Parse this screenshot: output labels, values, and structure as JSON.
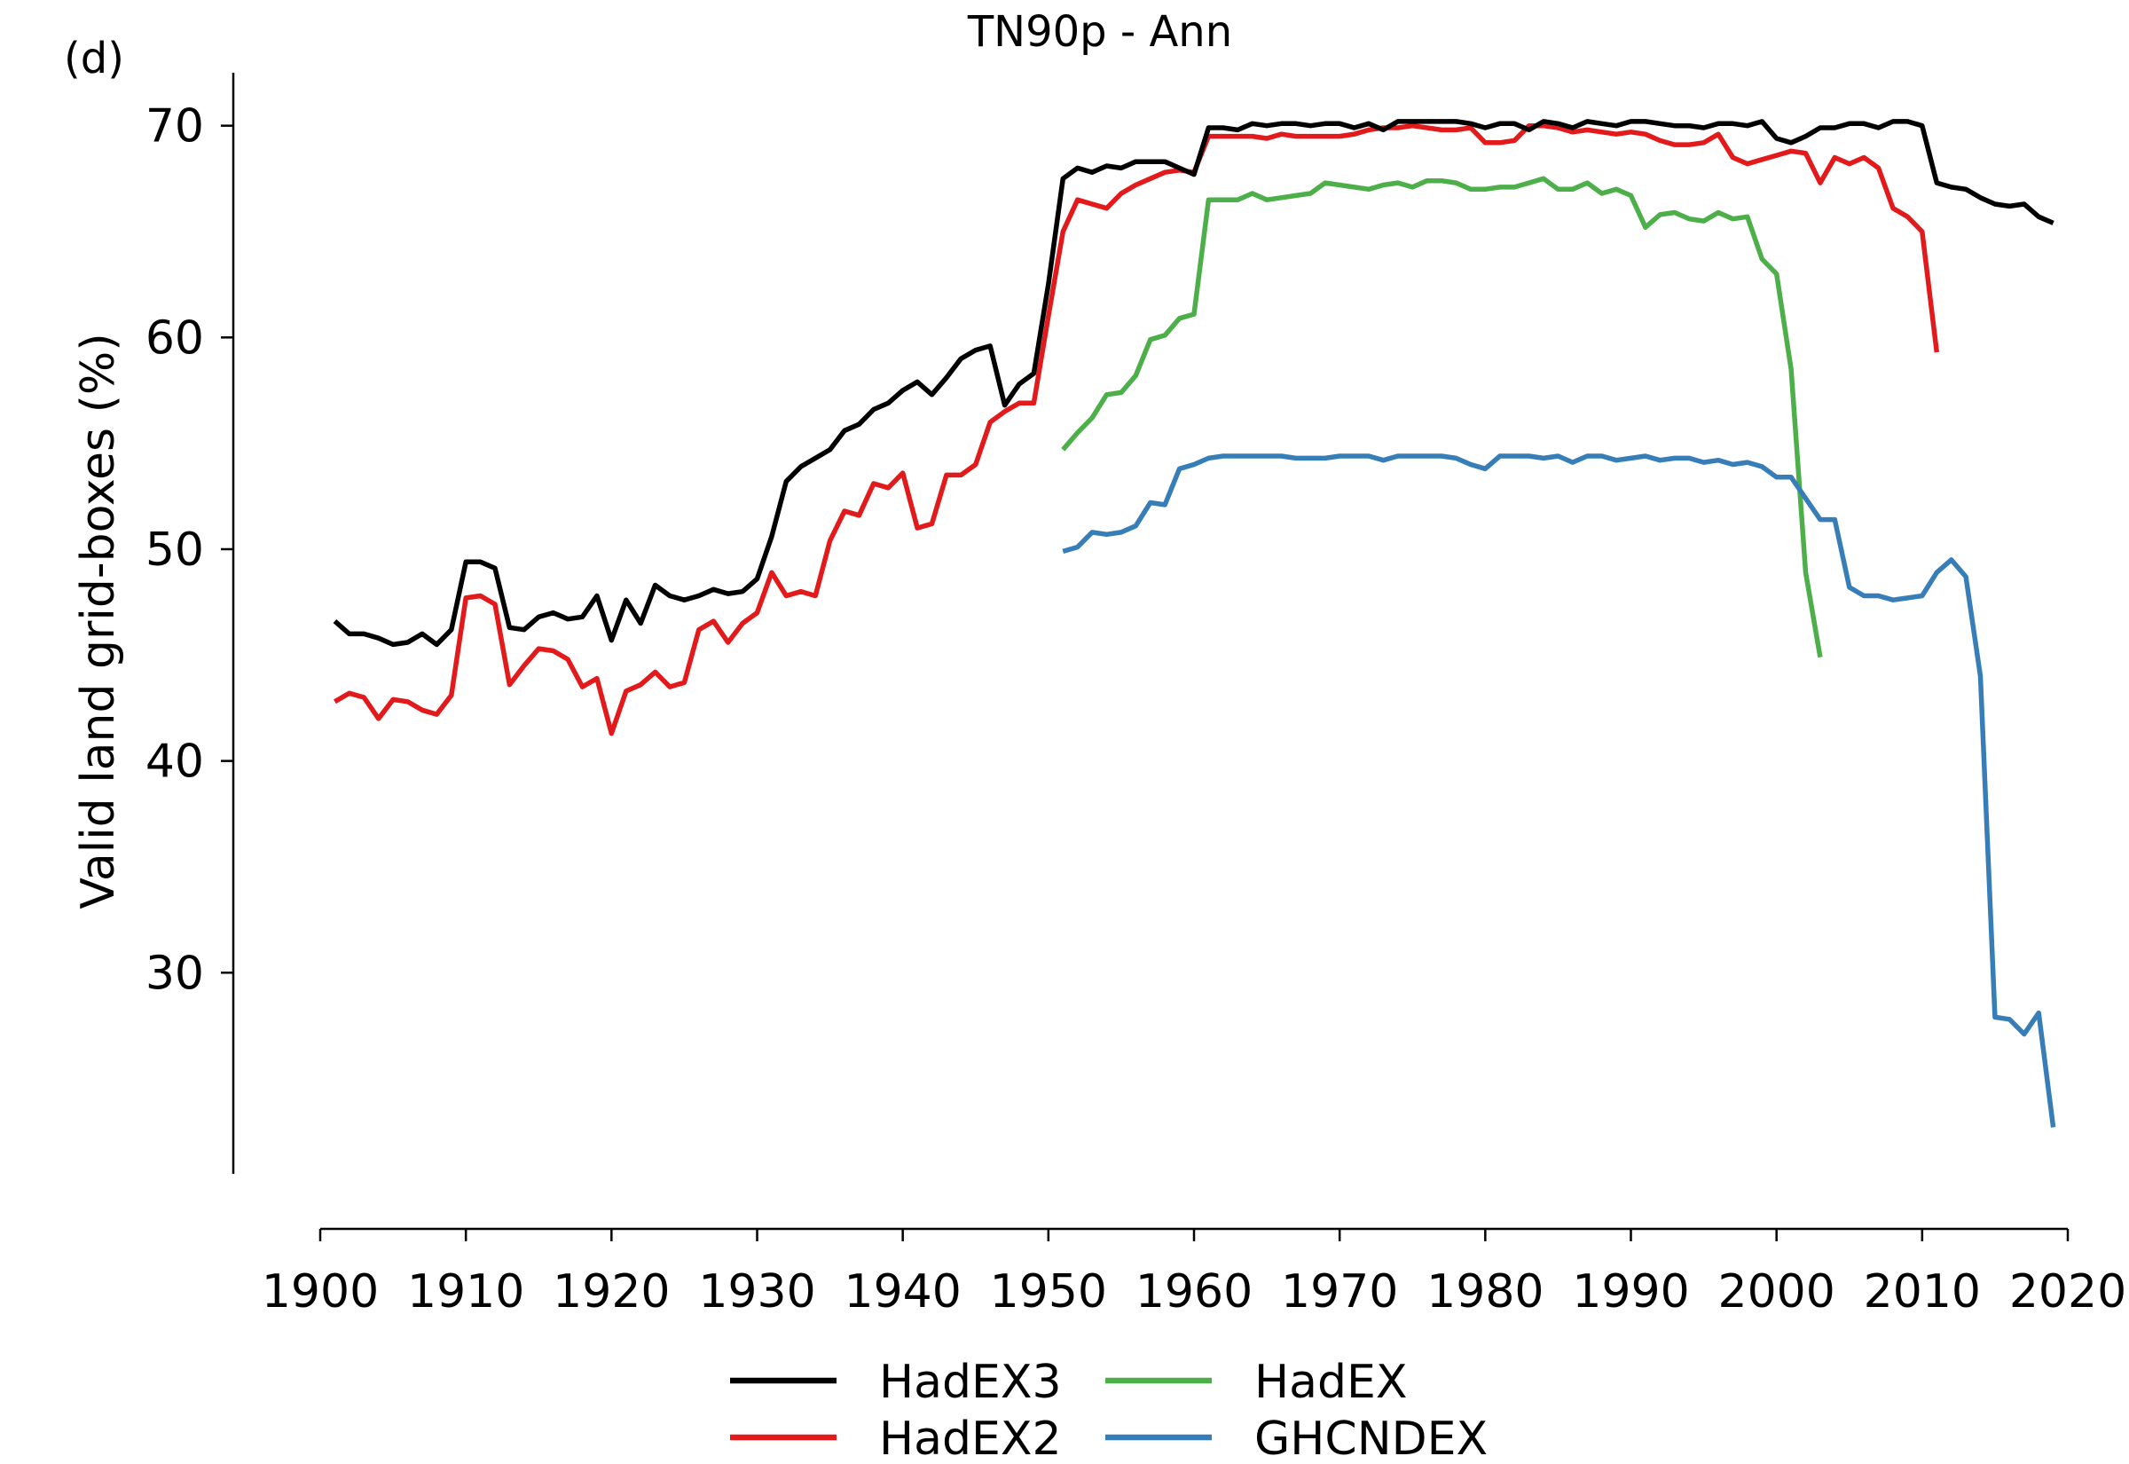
{
  "panel_label": "(d)",
  "chart_data": {
    "type": "line",
    "title": "TN90p - Ann",
    "xlabel": "",
    "ylabel": "Valid land grid-boxes (%)",
    "xlim": [
      1900,
      2020
    ],
    "ylim": [
      20.5,
      72.5
    ],
    "x_ticks": [
      1900,
      1910,
      1920,
      1930,
      1940,
      1950,
      1960,
      1970,
      1980,
      1990,
      2000,
      2010,
      2020
    ],
    "y_ticks": [
      30,
      40,
      50,
      60,
      70
    ],
    "grid": false,
    "legend_position": "bottom",
    "series": [
      {
        "name": "HadEX3",
        "color": "#000000",
        "x_start": 1901,
        "values": [
          46.6,
          46.0,
          46.0,
          45.8,
          45.5,
          45.6,
          46.0,
          45.5,
          46.2,
          49.4,
          49.4,
          49.1,
          46.3,
          46.2,
          46.8,
          47.0,
          46.7,
          46.8,
          47.8,
          45.7,
          47.6,
          46.5,
          48.3,
          47.8,
          47.6,
          47.8,
          48.1,
          47.9,
          48.0,
          48.6,
          50.6,
          53.2,
          53.9,
          54.3,
          54.7,
          55.6,
          55.9,
          56.6,
          56.9,
          57.5,
          57.9,
          57.3,
          58.1,
          59.0,
          59.4,
          59.6,
          56.8,
          57.8,
          58.3,
          62.5,
          67.5,
          68.0,
          67.8,
          68.1,
          68.0,
          68.3,
          68.3,
          68.3,
          68.0,
          67.7,
          69.9,
          69.9,
          69.8,
          70.1,
          70.0,
          70.1,
          70.1,
          70.0,
          70.1,
          70.1,
          69.9,
          70.1,
          69.8,
          70.2,
          70.2,
          70.2,
          70.2,
          70.2,
          70.1,
          69.9,
          70.1,
          70.1,
          69.8,
          70.2,
          70.1,
          69.9,
          70.2,
          70.1,
          70.0,
          70.2,
          70.2,
          70.1,
          70.0,
          70.0,
          69.9,
          70.1,
          70.1,
          70.0,
          70.2,
          69.4,
          69.2,
          69.5,
          69.9,
          69.9,
          70.1,
          70.1,
          69.9,
          70.2,
          70.2,
          70.0,
          67.3,
          67.1,
          67.0,
          66.6,
          66.3,
          66.2,
          66.3,
          65.7,
          65.4
        ]
      },
      {
        "name": "HadEX2",
        "color": "#e31a1c",
        "x_start": 1901,
        "values": [
          42.8,
          43.2,
          43.0,
          42.0,
          42.9,
          42.8,
          42.4,
          42.2,
          43.1,
          47.7,
          47.8,
          47.4,
          43.6,
          44.5,
          45.3,
          45.2,
          44.8,
          43.5,
          43.9,
          41.3,
          43.3,
          43.6,
          44.2,
          43.5,
          43.7,
          46.2,
          46.6,
          45.6,
          46.5,
          47.0,
          48.9,
          47.8,
          48.0,
          47.8,
          50.4,
          51.8,
          51.6,
          53.1,
          52.9,
          53.6,
          51.0,
          51.2,
          53.5,
          53.5,
          54.0,
          56.0,
          56.5,
          56.9,
          56.9,
          61.0,
          65.0,
          66.5,
          66.3,
          66.1,
          66.8,
          67.2,
          67.5,
          67.8,
          67.9,
          67.8,
          69.5,
          69.5,
          69.5,
          69.5,
          69.4,
          69.6,
          69.5,
          69.5,
          69.5,
          69.5,
          69.6,
          69.8,
          69.9,
          69.9,
          70.0,
          69.9,
          69.8,
          69.8,
          69.9,
          69.2,
          69.2,
          69.3,
          70.0,
          70.0,
          69.9,
          69.7,
          69.8,
          69.7,
          69.6,
          69.7,
          69.6,
          69.3,
          69.1,
          69.1,
          69.2,
          69.6,
          68.5,
          68.2,
          68.4,
          68.6,
          68.8,
          68.7,
          67.3,
          68.5,
          68.2,
          68.5,
          68.0,
          66.1,
          65.7,
          65.0,
          59.3
        ]
      },
      {
        "name": "HadEX",
        "color": "#4daf4a",
        "x_start": 1951,
        "values": [
          54.7,
          55.5,
          56.2,
          57.3,
          57.4,
          58.2,
          59.9,
          60.1,
          60.9,
          61.1,
          66.5,
          66.5,
          66.5,
          66.8,
          66.5,
          66.6,
          66.7,
          66.8,
          67.3,
          67.2,
          67.1,
          67.0,
          67.2,
          67.3,
          67.1,
          67.4,
          67.4,
          67.3,
          67.0,
          67.0,
          67.1,
          67.1,
          67.3,
          67.5,
          67.0,
          67.0,
          67.3,
          66.8,
          67.0,
          66.7,
          65.2,
          65.8,
          65.9,
          65.6,
          65.5,
          65.9,
          65.6,
          65.7,
          63.7,
          63.0,
          58.5,
          48.9,
          44.9
        ]
      },
      {
        "name": "GHCNDEX",
        "color": "#377eb8",
        "x_start": 1951,
        "values": [
          49.9,
          50.1,
          50.8,
          50.7,
          50.8,
          51.1,
          52.2,
          52.1,
          53.8,
          54.0,
          54.3,
          54.4,
          54.4,
          54.4,
          54.4,
          54.4,
          54.3,
          54.3,
          54.3,
          54.4,
          54.4,
          54.4,
          54.2,
          54.4,
          54.4,
          54.4,
          54.4,
          54.3,
          54.0,
          53.8,
          54.4,
          54.4,
          54.4,
          54.3,
          54.4,
          54.1,
          54.4,
          54.4,
          54.2,
          54.3,
          54.4,
          54.2,
          54.3,
          54.3,
          54.1,
          54.2,
          54.0,
          54.1,
          53.9,
          53.4,
          53.4,
          52.4,
          51.4,
          51.4,
          48.2,
          47.8,
          47.8,
          47.6,
          47.7,
          47.8,
          48.9,
          49.5,
          48.7,
          44.0,
          27.9,
          27.8,
          27.1,
          28.1,
          22.7
        ]
      }
    ]
  }
}
